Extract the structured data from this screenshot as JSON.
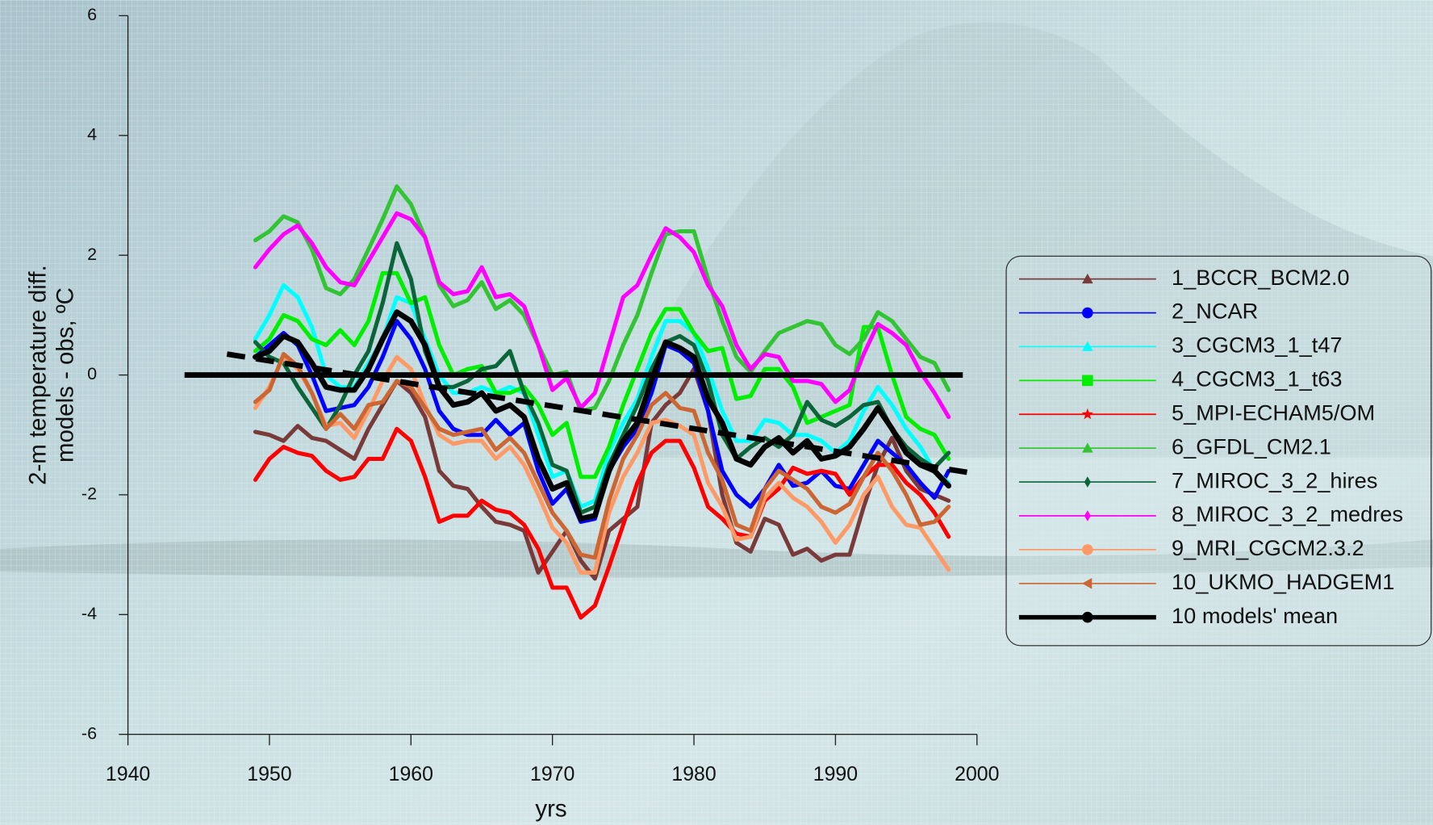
{
  "chart_data": {
    "type": "line",
    "y_label": [
      "2-m temperature diff.",
      "models - obs, ºC"
    ],
    "x_label": "yrs",
    "xlim": [
      1940,
      2000
    ],
    "xticks": [
      1940,
      1950,
      1960,
      1970,
      1980,
      1990,
      2000
    ],
    "ylim": [
      -6,
      6
    ],
    "yticks": [
      -6,
      -4,
      -2,
      0,
      2,
      4,
      6
    ],
    "legend": "right",
    "x": [
      1949,
      1950,
      1951,
      1952,
      1953,
      1954,
      1955,
      1956,
      1957,
      1958,
      1959,
      1960,
      1961,
      1962,
      1963,
      1964,
      1965,
      1966,
      1967,
      1968,
      1969,
      1970,
      1971,
      1972,
      1973,
      1974,
      1975,
      1976,
      1977,
      1978,
      1979,
      1980,
      1981,
      1982,
      1983,
      1984,
      1985,
      1986,
      1987,
      1988,
      1989,
      1990,
      1991,
      1992,
      1993,
      1994,
      1995,
      1996,
      1997,
      1998
    ],
    "series": [
      {
        "name": "1_BCCR_BCM2.0",
        "color": "#7a3a3a",
        "marker": "triangle",
        "values": [
          -0.95,
          -1.0,
          -1.1,
          -0.85,
          -1.05,
          -1.1,
          -1.25,
          -1.4,
          -0.9,
          -0.5,
          -0.1,
          -0.3,
          -0.7,
          -1.6,
          -1.85,
          -1.9,
          -2.2,
          -2.45,
          -2.5,
          -2.6,
          -3.3,
          -2.95,
          -2.6,
          -3.1,
          -3.4,
          -2.6,
          -2.4,
          -2.2,
          -0.8,
          -0.5,
          -0.3,
          0.1,
          -0.6,
          -2.0,
          -2.8,
          -2.95,
          -2.4,
          -2.5,
          -3.0,
          -2.9,
          -3.1,
          -3.0,
          -3.0,
          -2.2,
          -1.5,
          -1.05,
          -1.6,
          -1.9,
          -2.0,
          -2.1
        ]
      },
      {
        "name": "2_NCAR",
        "color": "#0000ff",
        "marker": "circle",
        "values": [
          0.3,
          0.5,
          0.7,
          0.5,
          0.0,
          -0.6,
          -0.55,
          -0.5,
          -0.2,
          0.3,
          0.9,
          0.6,
          0.1,
          -0.6,
          -0.9,
          -1.0,
          -1.0,
          -0.75,
          -1.0,
          -0.8,
          -1.6,
          -2.15,
          -1.9,
          -2.45,
          -2.4,
          -1.6,
          -1.2,
          -0.9,
          -0.3,
          0.5,
          0.4,
          0.2,
          -0.6,
          -1.6,
          -2.0,
          -2.2,
          -1.9,
          -1.5,
          -1.85,
          -1.8,
          -1.6,
          -1.85,
          -1.9,
          -1.5,
          -1.1,
          -1.3,
          -1.5,
          -1.8,
          -2.05,
          -1.6
        ]
      },
      {
        "name": "3_CGCM3_1_t47",
        "color": "#00ffff",
        "marker": "triangle",
        "values": [
          0.6,
          1.0,
          1.5,
          1.3,
          0.8,
          0.0,
          -0.2,
          -0.2,
          0.2,
          0.6,
          1.3,
          1.2,
          0.6,
          0.0,
          -0.3,
          -0.3,
          -0.2,
          -0.3,
          -0.2,
          -0.3,
          -1.0,
          -1.7,
          -1.6,
          -2.2,
          -2.1,
          -1.3,
          -0.8,
          -0.4,
          0.3,
          0.9,
          0.9,
          0.7,
          0.1,
          -0.6,
          -1.1,
          -1.1,
          -0.75,
          -0.8,
          -1.0,
          -1.0,
          -1.1,
          -1.3,
          -1.1,
          -0.6,
          -0.2,
          -0.5,
          -0.9,
          -1.2,
          -1.6,
          -1.8
        ]
      },
      {
        "name": "4_CGCM3_1_t63",
        "color": "#00ee00",
        "marker": "square",
        "values": [
          0.4,
          0.6,
          1.0,
          0.9,
          0.6,
          0.5,
          0.75,
          0.5,
          0.9,
          1.7,
          1.7,
          1.2,
          1.3,
          0.5,
          0.0,
          0.1,
          0.15,
          -0.3,
          -0.3,
          -0.2,
          -0.5,
          -1.0,
          -0.8,
          -1.7,
          -1.7,
          -1.2,
          -0.5,
          0.1,
          0.7,
          1.1,
          1.1,
          0.7,
          0.4,
          0.45,
          -0.4,
          -0.35,
          0.1,
          0.1,
          -0.2,
          -0.8,
          -0.7,
          -0.6,
          -0.5,
          0.8,
          0.8,
          0.0,
          -0.7,
          -0.9,
          -1.0,
          -1.4
        ]
      },
      {
        "name": "5_MPI-ECHAM5/OM",
        "color": "#ff0000",
        "marker": "star",
        "values": [
          -1.75,
          -1.4,
          -1.2,
          -1.3,
          -1.35,
          -1.6,
          -1.75,
          -1.7,
          -1.4,
          -1.4,
          -0.9,
          -1.1,
          -1.7,
          -2.45,
          -2.35,
          -2.35,
          -2.1,
          -2.25,
          -2.3,
          -2.5,
          -2.9,
          -3.55,
          -3.55,
          -4.05,
          -3.85,
          -3.2,
          -2.5,
          -1.8,
          -1.3,
          -1.1,
          -1.1,
          -1.55,
          -2.2,
          -2.4,
          -2.65,
          -2.7,
          -2.1,
          -1.9,
          -1.55,
          -1.65,
          -1.6,
          -1.65,
          -2.0,
          -1.7,
          -1.5,
          -1.5,
          -1.8,
          -2.0,
          -2.3,
          -2.7
        ]
      },
      {
        "name": "6_GFDL_CM2.1",
        "color": "#33c433",
        "marker": "triangle",
        "values": [
          2.25,
          2.4,
          2.65,
          2.55,
          2.1,
          1.45,
          1.35,
          1.6,
          2.1,
          2.6,
          3.15,
          2.85,
          2.3,
          1.5,
          1.15,
          1.25,
          1.55,
          1.1,
          1.25,
          1.0,
          0.5,
          0.0,
          0.05,
          -0.6,
          -0.55,
          -0.1,
          0.5,
          1.0,
          1.7,
          2.35,
          2.4,
          2.4,
          1.6,
          0.9,
          0.3,
          0.05,
          0.4,
          0.7,
          0.8,
          0.9,
          0.85,
          0.5,
          0.35,
          0.6,
          1.05,
          0.9,
          0.6,
          0.3,
          0.2,
          -0.25
        ]
      },
      {
        "name": "7_MIROC_3_2_hires",
        "color": "#0a6638",
        "marker": "diamond",
        "values": [
          0.55,
          0.3,
          0.2,
          -0.2,
          -0.55,
          -0.9,
          -0.5,
          0.0,
          0.4,
          1.2,
          2.2,
          1.6,
          0.4,
          -0.2,
          -0.2,
          -0.1,
          0.1,
          0.15,
          0.4,
          -0.3,
          -0.8,
          -1.5,
          -1.6,
          -2.3,
          -2.2,
          -1.5,
          -1.0,
          -0.5,
          0.1,
          0.55,
          0.65,
          0.5,
          -0.1,
          -1.0,
          -1.4,
          -1.2,
          -1.05,
          -1.2,
          -1.0,
          -0.45,
          -0.75,
          -0.85,
          -0.7,
          -0.5,
          -0.45,
          -0.9,
          -1.2,
          -1.4,
          -1.55,
          -1.3
        ]
      },
      {
        "name": "8_MIROC_3_2_medres",
        "color": "#ff00ff",
        "marker": "diamond",
        "values": [
          1.8,
          2.1,
          2.35,
          2.5,
          2.2,
          1.8,
          1.55,
          1.5,
          1.9,
          2.3,
          2.7,
          2.6,
          2.3,
          1.55,
          1.35,
          1.4,
          1.8,
          1.3,
          1.35,
          1.15,
          0.5,
          -0.25,
          -0.05,
          -0.55,
          -0.3,
          0.5,
          1.3,
          1.5,
          2.0,
          2.45,
          2.3,
          2.05,
          1.5,
          1.15,
          0.5,
          0.1,
          0.35,
          0.3,
          -0.1,
          -0.1,
          -0.15,
          -0.45,
          -0.25,
          0.35,
          0.85,
          0.7,
          0.5,
          0.05,
          -0.3,
          -0.7
        ]
      },
      {
        "name": "9_MRI_CGCM2.3.2",
        "color": "#ff9966",
        "marker": "circle",
        "values": [
          -0.55,
          -0.2,
          0.3,
          0.1,
          -0.3,
          -0.85,
          -0.8,
          -1.05,
          -0.6,
          -0.1,
          0.3,
          0.1,
          -0.5,
          -1.0,
          -1.15,
          -1.1,
          -1.1,
          -1.4,
          -1.2,
          -1.5,
          -2.0,
          -2.55,
          -2.8,
          -3.3,
          -3.3,
          -2.3,
          -1.7,
          -1.3,
          -0.8,
          -0.75,
          -0.85,
          -1.0,
          -1.8,
          -2.2,
          -2.75,
          -2.7,
          -2.05,
          -1.8,
          -2.05,
          -2.2,
          -2.45,
          -2.8,
          -2.5,
          -2.0,
          -1.7,
          -2.2,
          -2.5,
          -2.55,
          -2.9,
          -3.25
        ]
      },
      {
        "name": "10_UKMO_HADGEM1",
        "color": "#cc6633",
        "marker": "left-triangle",
        "values": [
          -0.45,
          -0.25,
          0.35,
          0.15,
          -0.3,
          -0.9,
          -0.65,
          -0.9,
          -0.5,
          -0.45,
          -0.1,
          -0.2,
          -0.55,
          -0.9,
          -1.0,
          -0.95,
          -0.9,
          -1.25,
          -1.05,
          -1.3,
          -1.8,
          -2.3,
          -2.6,
          -3.0,
          -3.05,
          -2.1,
          -1.4,
          -1.0,
          -0.5,
          -0.3,
          -0.55,
          -0.6,
          -1.3,
          -1.75,
          -2.5,
          -2.6,
          -1.9,
          -1.6,
          -1.75,
          -1.9,
          -2.2,
          -2.3,
          -2.15,
          -1.7,
          -1.3,
          -1.6,
          -2.0,
          -2.5,
          -2.45,
          -2.2
        ]
      },
      {
        "name": "10 models' mean",
        "color": "#000000",
        "marker": "circle",
        "values": [
          0.3,
          0.4,
          0.65,
          0.55,
          0.2,
          -0.2,
          -0.25,
          -0.25,
          0.1,
          0.6,
          1.05,
          0.9,
          0.5,
          -0.2,
          -0.5,
          -0.45,
          -0.3,
          -0.6,
          -0.5,
          -0.7,
          -1.4,
          -1.9,
          -1.8,
          -2.4,
          -2.35,
          -1.6,
          -1.1,
          -0.8,
          -0.1,
          0.55,
          0.45,
          0.3,
          -0.4,
          -0.8,
          -1.4,
          -1.5,
          -1.2,
          -1.05,
          -1.3,
          -1.1,
          -1.4,
          -1.35,
          -1.2,
          -0.9,
          -0.55,
          -0.9,
          -1.3,
          -1.5,
          -1.6,
          -1.85
        ]
      }
    ],
    "reference_lines": [
      {
        "x": [
          1944,
          1999
        ],
        "values": [
          0,
          0
        ],
        "color": "#000000",
        "style": "solid"
      },
      {
        "x": [
          1947,
          2000
        ],
        "values": [
          0.35,
          -1.65
        ],
        "color": "#000000",
        "style": "dashed"
      }
    ]
  }
}
